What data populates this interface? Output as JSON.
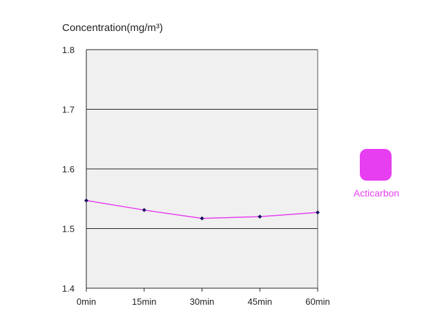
{
  "chart_data": {
    "type": "line",
    "ylabel": "Concentration(mg/m³)",
    "xlabel": "",
    "categories": [
      "0min",
      "15min",
      "30min",
      "45min",
      "60min"
    ],
    "ylim": [
      1.4,
      1.8
    ],
    "yticks": [
      "1.4",
      "1.5",
      "1.6",
      "1.7",
      "1.8"
    ],
    "grid": true,
    "legend_position": "right",
    "series": [
      {
        "name": "Acticarbon",
        "color": "#e63ef0",
        "marker_color": "#1a1060",
        "values": [
          1.547,
          1.531,
          1.517,
          1.52,
          1.527
        ]
      }
    ],
    "plot_background": "#f0f0f0"
  }
}
